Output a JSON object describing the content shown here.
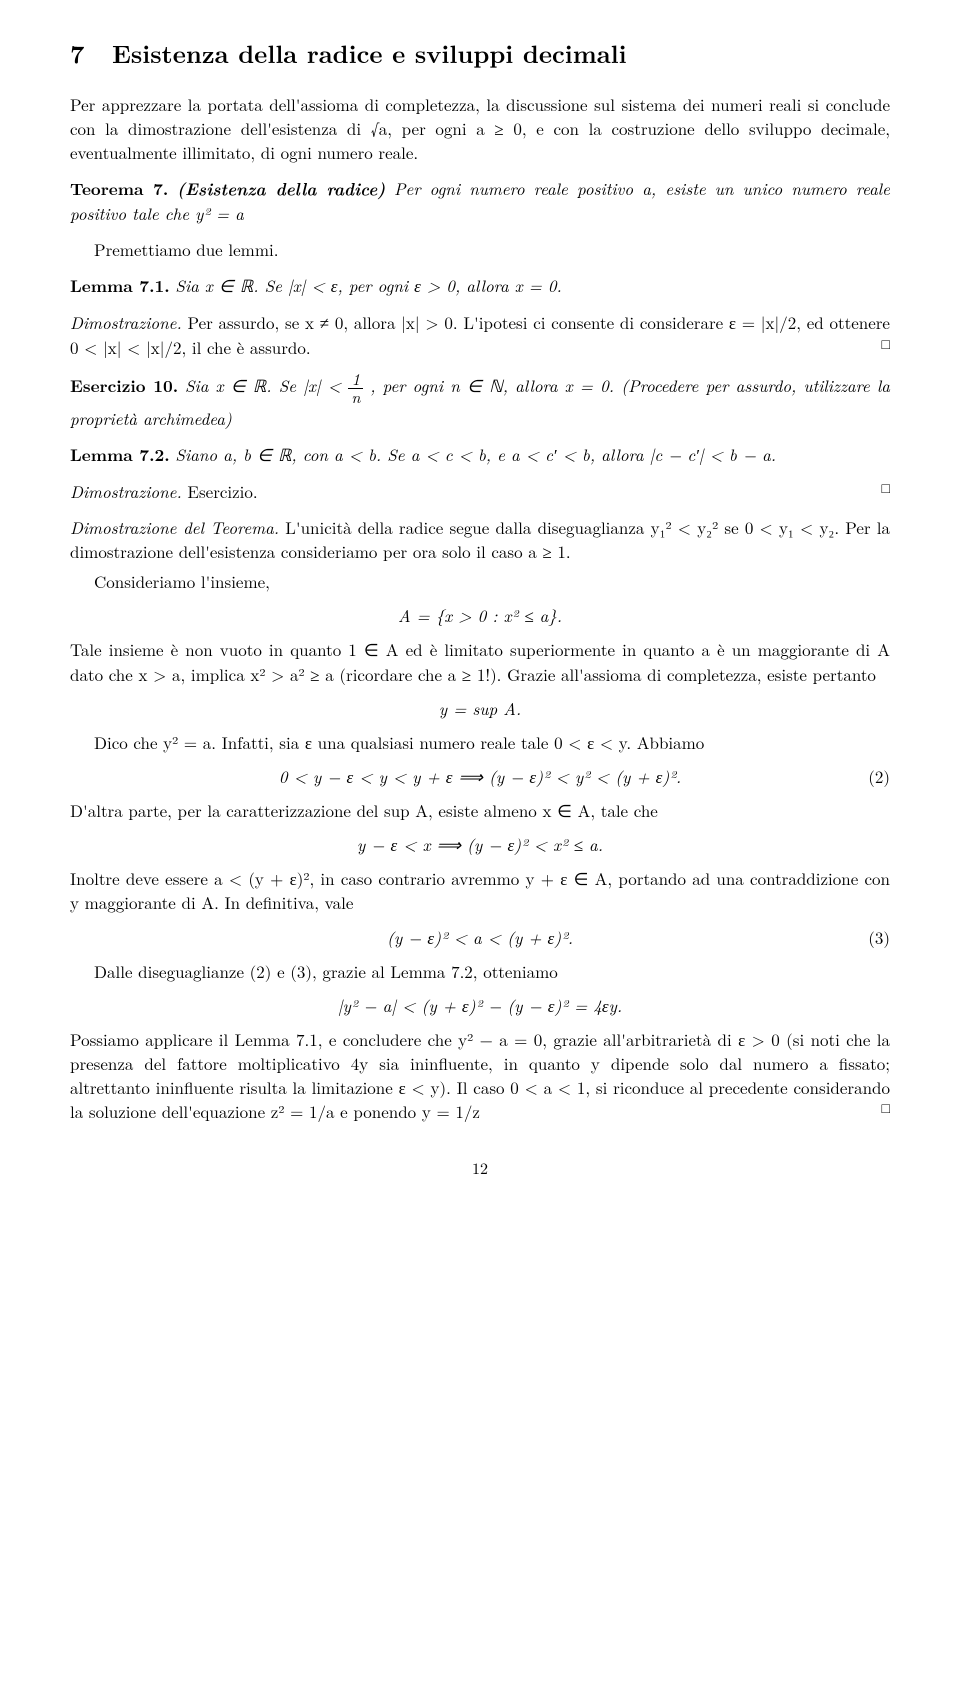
{
  "section": {
    "number": "7",
    "title": "Esistenza della radice e sviluppi decimali"
  },
  "intro": "Per apprezzare la portata dell'assioma di completezza, la discussione sul sistema dei numeri reali si conclude con la dimostrazione dell'esistenza di √a, per ogni a ≥ 0, e con la costruzione dello sviluppo decimale, eventualmente illimitato, di ogni numero reale.",
  "theorem": {
    "label": "Teorema 7.",
    "name": "(Esistenza della radice)",
    "body": "Per ogni numero reale positivo a, esiste un unico numero reale positivo tale che y² = a"
  },
  "premise": "Premettiamo due lemmi.",
  "lemma1": {
    "label": "Lemma 7.1.",
    "body": "Sia x ∈ ℝ. Se |x| < ε, per ogni ε > 0, allora x = 0."
  },
  "proof1": {
    "label": "Dimostrazione.",
    "body": "Per assurdo, se x ≠ 0, allora |x| > 0. L'ipotesi ci consente di considerare ε = |x|/2, ed ottenere 0 < |x| < |x|/2, il che è assurdo."
  },
  "exercise": {
    "label": "Esercizio 10.",
    "body_a": "Sia x ∈ ℝ. Se |x| < ",
    "body_b": ", per ogni n ∈ ℕ, allora x = 0. (Procedere per assurdo, utilizzare la proprietà archimedea)",
    "frac_num": "1",
    "frac_den": "n"
  },
  "lemma2": {
    "label": "Lemma 7.2.",
    "body": "Siano a, b ∈ ℝ, con a < b. Se a < c < b, e a < c′ < b, allora |c − c′| < b − a."
  },
  "proof2": {
    "label": "Dimostrazione.",
    "body": "Esercizio."
  },
  "mainproof": {
    "label": "Dimostrazione del Teorema.",
    "p1": "L'unicità della radice segue dalla diseguaglianza y₁² < y₂² se 0 < y₁ < y₂. Per la dimostrazione dell'esistenza consideriamo per ora solo il caso a ≥ 1.",
    "p2": "Consideriamo l'insieme,",
    "setA": "A = {x > 0 : x² ≤ a}.",
    "p3": "Tale insieme è non vuoto in quanto 1 ∈ A ed è limitato superiormente in quanto a è un maggiorante di A dato che x > a, implica x² > a² ≥ a (ricordare che a ≥ 1!). Grazie all'assioma di completezza, esiste pertanto",
    "sup": "y = sup A.",
    "p4": "Dico che y² = a. Infatti, sia ε una qualsiasi numero reale tale 0 < ε < y. Abbiamo",
    "eq2": "0 < y − ε < y < y + ε  ⟹  (y − ε)² < y² < (y + ε)².",
    "eq2num": "(2)",
    "p5": "D'altra parte, per la caratterizzazione del sup A, esiste almeno x ∈ A, tale che",
    "eq_impl": "y − ε < x  ⟹  (y − ε)² < x² ≤ a.",
    "p6": "Inoltre deve essere a < (y + ε)², in caso contrario avremmo y + ε ∈ A, portando ad una contraddizione con y maggiorante di A. In definitiva, vale",
    "eq3": "(y − ε)² < a < (y + ε)².",
    "eq3num": "(3)",
    "p7": "Dalle diseguaglianze (2) e (3), grazie al Lemma 7.2, otteniamo",
    "eq_final": "|y² − a| < (y + ε)² − (y − ε)² = 4εy.",
    "p8": "Possiamo applicare il Lemma 7.1, e concludere che y² − a = 0, grazie all'arbitrarietà di ε > 0 (si noti che la presenza del fattore moltiplicativo 4y sia ininfluente, in quanto y dipende solo dal numero a fissato; altrettanto ininfluente risulta la limitazione ε < y). Il caso 0 < a < 1, si riconduce al precedente considerando la soluzione dell'equazione z² = 1/a e ponendo y = 1/z"
  },
  "page_number": "12",
  "qed": "□"
}
